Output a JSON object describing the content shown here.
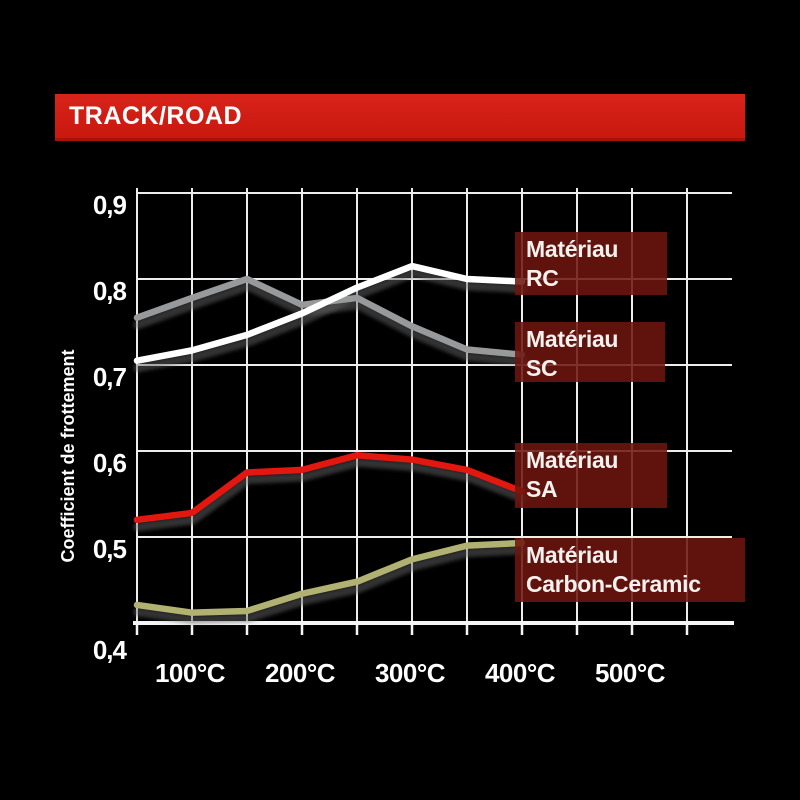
{
  "banner": {
    "title": "TRACK/ROAD"
  },
  "colors": {
    "background": "#000000",
    "banner_red": "#d8231a",
    "grid_white": "#ededed",
    "axis_white": "#f5f5f5",
    "text_white": "#ffffff",
    "legend_box_maroon": "rgba(110,22,14,0.87)"
  },
  "chart_data": {
    "type": "line",
    "title": "TRACK/ROAD",
    "xlabel": "",
    "ylabel": "Coefficient de frottement",
    "x_unit": "°C",
    "x": [
      50,
      100,
      150,
      200,
      250,
      300,
      350,
      400
    ],
    "xlim": [
      50,
      590
    ],
    "ylim": [
      0.4,
      0.9
    ],
    "grid": true,
    "x_grid_step_deg": 50,
    "y_grid_step": 0.1,
    "x_tick_values": [
      100,
      200,
      300,
      400,
      500
    ],
    "x_tick_labels": [
      "100°C",
      "200°C",
      "300°C",
      "400°C",
      "500°C"
    ],
    "y_tick_values": [
      0.9,
      0.8,
      0.7,
      0.6,
      0.5,
      0.4
    ],
    "y_tick_labels": [
      "0,9",
      "0,8",
      "0,7",
      "0,6",
      "0,5",
      "0,4"
    ],
    "legend_position": "right-overlay",
    "series": [
      {
        "name": "Matériau SC",
        "color": "#97999b",
        "values": [
          0.755,
          0.778,
          0.8,
          0.77,
          0.778,
          0.745,
          0.718,
          0.712
        ]
      },
      {
        "name": "Matériau RC",
        "color": "#ffffff",
        "values": [
          0.705,
          0.717,
          0.735,
          0.76,
          0.79,
          0.815,
          0.8,
          0.797
        ]
      },
      {
        "name": "Matériau SA",
        "color": "#e2170f",
        "values": [
          0.52,
          0.528,
          0.575,
          0.578,
          0.595,
          0.59,
          0.578,
          0.553
        ]
      },
      {
        "name": "Matériau Carbon-Ceramic",
        "color": "#b1b172",
        "values": [
          0.421,
          0.412,
          0.414,
          0.434,
          0.448,
          0.474,
          0.49,
          0.493
        ]
      }
    ],
    "legend": [
      {
        "line1": "Matériau",
        "line2": "RC"
      },
      {
        "line1": "Matériau",
        "line2": "SC"
      },
      {
        "line1": "Matériau",
        "line2": "SA"
      },
      {
        "line1": "Matériau",
        "line2": "Carbon-Ceramic"
      }
    ]
  }
}
